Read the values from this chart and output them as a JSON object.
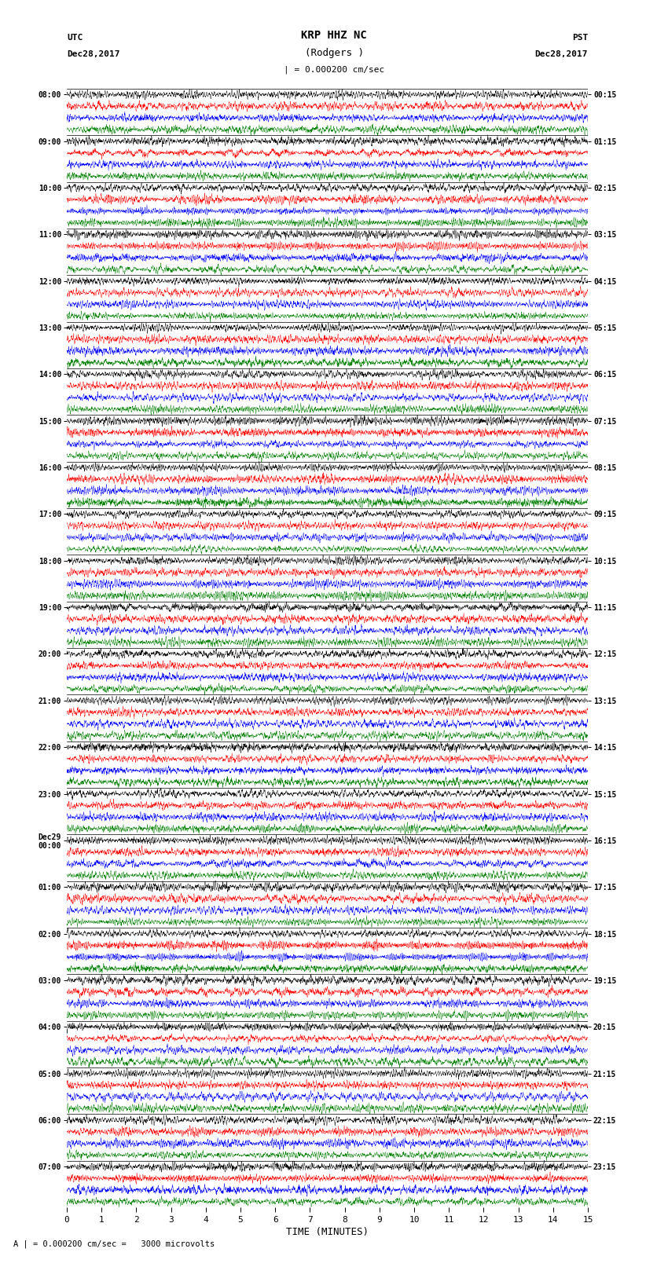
{
  "title_line1": "KRP HHZ NC",
  "title_line2": "(Rodgers )",
  "scale_label": "| = 0.000200 cm/sec",
  "footer_label": "A | = 0.000200 cm/sec =   3000 microvolts",
  "xlabel": "TIME (MINUTES)",
  "left_header_line1": "UTC",
  "left_header_line2": "Dec28,2017",
  "right_header_line1": "PST",
  "right_header_line2": "Dec28,2017",
  "utc_row_labels": [
    "08:00",
    "09:00",
    "10:00",
    "11:00",
    "12:00",
    "13:00",
    "14:00",
    "15:00",
    "16:00",
    "17:00",
    "18:00",
    "19:00",
    "20:00",
    "21:00",
    "22:00",
    "23:00",
    "Dec29\n00:00",
    "01:00",
    "02:00",
    "03:00",
    "04:00",
    "05:00",
    "06:00",
    "07:00"
  ],
  "pst_row_labels": [
    "00:15",
    "01:15",
    "02:15",
    "03:15",
    "04:15",
    "05:15",
    "06:15",
    "07:15",
    "08:15",
    "09:15",
    "10:15",
    "11:15",
    "12:15",
    "13:15",
    "14:15",
    "15:15",
    "16:15",
    "17:15",
    "18:15",
    "19:15",
    "20:15",
    "21:15",
    "22:15",
    "23:15"
  ],
  "n_groups": 24,
  "traces_per_group": 4,
  "n_pts": 3000,
  "colors_cycle": [
    "black",
    "red",
    "blue",
    "green"
  ],
  "trace_amplitude": 0.55,
  "xmin": 0,
  "xmax": 15,
  "xticks": [
    0,
    1,
    2,
    3,
    4,
    5,
    6,
    7,
    8,
    9,
    10,
    11,
    12,
    13,
    14,
    15
  ],
  "figwidth": 8.5,
  "figheight": 16.13,
  "bg_color": "#ffffff",
  "lw": 0.3
}
